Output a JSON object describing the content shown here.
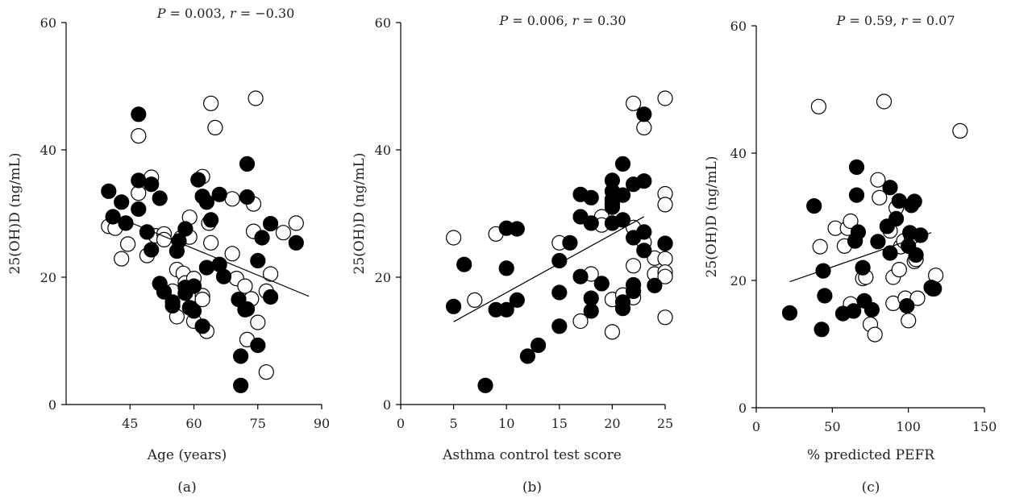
{
  "chart_data": [
    {
      "type": "scatter",
      "panel_label": "(a)",
      "stat": {
        "p_label": "P",
        "p_value": "= 0.003,",
        "r_label": "r",
        "r_value": "= −0.30"
      },
      "xlabel": "Age (years)",
      "ylabel": "25(OH)D (ng/mL)",
      "xlim": [
        30,
        90
      ],
      "ylim": [
        0,
        60
      ],
      "xticks": [
        45,
        60,
        75,
        90
      ],
      "yticks": [
        0,
        20,
        40,
        60
      ],
      "trend": [
        [
          40,
          30
        ],
        [
          87,
          17
        ]
      ],
      "series": [
        {
          "marker": "open",
          "points": [
            [
              40,
              28
            ],
            [
              41.5,
              27.7
            ],
            [
              43,
              22.9
            ],
            [
              44.5,
              25.2
            ],
            [
              47,
              42.2
            ],
            [
              47,
              33.2
            ],
            [
              49,
              23.4
            ],
            [
              50,
              35.7
            ],
            [
              51,
              26.5
            ],
            [
              53,
              26.8
            ],
            [
              53,
              25.9
            ],
            [
              55,
              17.8
            ],
            [
              56,
              21.2
            ],
            [
              56,
              13.8
            ],
            [
              57,
              26.2
            ],
            [
              57.5,
              20.6
            ],
            [
              58,
              19.1
            ],
            [
              59,
              29.4
            ],
            [
              59,
              26.3
            ],
            [
              60,
              19.8
            ],
            [
              60,
              13.1
            ],
            [
              60,
              17.3
            ],
            [
              62,
              35.8
            ],
            [
              62,
              17.1
            ],
            [
              62,
              16.5
            ],
            [
              63,
              11.5
            ],
            [
              63.5,
              28.5
            ],
            [
              64,
              25.4
            ],
            [
              64,
              47.3
            ],
            [
              65,
              43.5
            ],
            [
              69,
              32.3
            ],
            [
              69,
              23.7
            ],
            [
              70,
              19.8
            ],
            [
              72,
              18.6
            ],
            [
              72.5,
              10.2
            ],
            [
              73.5,
              16.6
            ],
            [
              74,
              31.5
            ],
            [
              74,
              27.2
            ],
            [
              74.5,
              48.1
            ],
            [
              75,
              12.9
            ],
            [
              77,
              17.8
            ],
            [
              77,
              5.1
            ],
            [
              78,
              20.5
            ],
            [
              81,
              27
            ],
            [
              84,
              28.5
            ]
          ]
        },
        {
          "marker": "filled",
          "points": [
            [
              40,
              33.5
            ],
            [
              41,
              29.5
            ],
            [
              43,
              31.8
            ],
            [
              44,
              28.5
            ],
            [
              47,
              45.6
            ],
            [
              47,
              35.2
            ],
            [
              47,
              30.7
            ],
            [
              49,
              27.1
            ],
            [
              50,
              24.3
            ],
            [
              50,
              34.6
            ],
            [
              52,
              32.4
            ],
            [
              52,
              19
            ],
            [
              53,
              17.7
            ],
            [
              55,
              16.1
            ],
            [
              55,
              15.5
            ],
            [
              56,
              24.1
            ],
            [
              56.5,
              25.7
            ],
            [
              58,
              27.6
            ],
            [
              58,
              18.4
            ],
            [
              58,
              17.5
            ],
            [
              59,
              15.2
            ],
            [
              60,
              14.7
            ],
            [
              60,
              18.6
            ],
            [
              61,
              35.3
            ],
            [
              62,
              32.7
            ],
            [
              62,
              12.3
            ],
            [
              63,
              21.5
            ],
            [
              63,
              31.8
            ],
            [
              64,
              29
            ],
            [
              66,
              22
            ],
            [
              66,
              33
            ],
            [
              67,
              20.1
            ],
            [
              70.5,
              16.5
            ],
            [
              71,
              7.6
            ],
            [
              71,
              3
            ],
            [
              72,
              14.9
            ],
            [
              72.5,
              15
            ],
            [
              72.5,
              37.8
            ],
            [
              72.5,
              32.6
            ],
            [
              75,
              22.6
            ],
            [
              75,
              9.3
            ],
            [
              76,
              26.2
            ],
            [
              78,
              28.4
            ],
            [
              78,
              16.9
            ],
            [
              84,
              25.4
            ]
          ]
        }
      ]
    },
    {
      "type": "scatter",
      "panel_label": "(b)",
      "stat": {
        "p_label": "P",
        "p_value": "= 0.006,",
        "r_label": "r",
        "r_value": "= 0.30"
      },
      "xlabel": "Asthma control test score",
      "ylabel": "25(OH)D (ng/mL)",
      "xlim": [
        0,
        25
      ],
      "ylim": [
        0,
        60
      ],
      "xticks": [
        0,
        5,
        10,
        15,
        20,
        25
      ],
      "yticks": [
        0,
        20,
        40,
        60
      ],
      "trend": [
        [
          5,
          13
        ],
        [
          23,
          29.5
        ]
      ],
      "series": [
        {
          "marker": "open",
          "points": [
            [
              5,
              26.2
            ],
            [
              7,
              16.4
            ],
            [
              9,
              26.8
            ],
            [
              15,
              25.4
            ],
            [
              17,
              13.1
            ],
            [
              18,
              20.5
            ],
            [
              19,
              29.5
            ],
            [
              19,
              28.2
            ],
            [
              20,
              16.5
            ],
            [
              20,
              11.4
            ],
            [
              20,
              31.5
            ],
            [
              21,
              17.2
            ],
            [
              22,
              47.3
            ],
            [
              22,
              27.8
            ],
            [
              22,
              21.8
            ],
            [
              22,
              16.8
            ],
            [
              23,
              43.5
            ],
            [
              23,
              25.5
            ],
            [
              24,
              20.5
            ],
            [
              24,
              23
            ],
            [
              25,
              48.1
            ],
            [
              25,
              33.1
            ],
            [
              25,
              31.4
            ],
            [
              25,
              25.3
            ],
            [
              25,
              22.9
            ],
            [
              25,
              20.8
            ],
            [
              25,
              20.1
            ],
            [
              25,
              13.7
            ]
          ]
        },
        {
          "marker": "filled",
          "points": [
            [
              5,
              15.4
            ],
            [
              6,
              22
            ],
            [
              8,
              3
            ],
            [
              9,
              14.9
            ],
            [
              10,
              27.7
            ],
            [
              10,
              21.4
            ],
            [
              10,
              14.9
            ],
            [
              11,
              27.6
            ],
            [
              11,
              16.4
            ],
            [
              12,
              7.6
            ],
            [
              13,
              9.3
            ],
            [
              15,
              22.6
            ],
            [
              15,
              17.6
            ],
            [
              15,
              12.3
            ],
            [
              16,
              25.4
            ],
            [
              17,
              33
            ],
            [
              17,
              29.5
            ],
            [
              17,
              20.1
            ],
            [
              18,
              32.5
            ],
            [
              18,
              28.5
            ],
            [
              18,
              16.7
            ],
            [
              18,
              14.7
            ],
            [
              19,
              19
            ],
            [
              20,
              35.2
            ],
            [
              20,
              33.5
            ],
            [
              20,
              32.2
            ],
            [
              20,
              31
            ],
            [
              20,
              28.5
            ],
            [
              21,
              37.8
            ],
            [
              21,
              32.9
            ],
            [
              21,
              29
            ],
            [
              21,
              16.1
            ],
            [
              21,
              15.1
            ],
            [
              22,
              34.6
            ],
            [
              22,
              26.2
            ],
            [
              22,
              18.8
            ],
            [
              22,
              17.8
            ],
            [
              23,
              45.6
            ],
            [
              23,
              35.1
            ],
            [
              23,
              27.1
            ],
            [
              23,
              24.2
            ],
            [
              24,
              18.7
            ],
            [
              25,
              25.3
            ]
          ]
        }
      ]
    },
    {
      "type": "scatter",
      "panel_label": "(c)",
      "stat": {
        "p_label": "P",
        "p_value": "= 0.59,",
        "r_label": "r",
        "r_value": "= 0.07"
      },
      "xlabel": "% predicted PEFR",
      "ylabel": "25(OH)D (ng/mL)",
      "xlim": [
        0,
        150
      ],
      "ylim": [
        0,
        60
      ],
      "xticks": [
        0,
        50,
        100,
        150
      ],
      "yticks": [
        0,
        20,
        40,
        60
      ],
      "trend": [
        [
          22,
          19.8
        ],
        [
          115,
          27.5
        ]
      ],
      "series": [
        {
          "marker": "open",
          "points": [
            [
              41,
              47.3
            ],
            [
              42,
              25.3
            ],
            [
              52,
              28.2
            ],
            [
              58,
              25.4
            ],
            [
              60,
              28.2
            ],
            [
              62,
              29.3
            ],
            [
              62,
              16.3
            ],
            [
              65,
              26.2
            ],
            [
              70,
              20.3
            ],
            [
              72,
              20.5
            ],
            [
              75,
              13.1
            ],
            [
              78,
              11.5
            ],
            [
              80,
              35.8
            ],
            [
              81,
              33
            ],
            [
              84,
              48.1
            ],
            [
              88,
              27.8
            ],
            [
              90,
              20.5
            ],
            [
              90,
              16.4
            ],
            [
              92,
              31.4
            ],
            [
              94,
              21.7
            ],
            [
              95,
              25.3
            ],
            [
              97,
              26.2
            ],
            [
              98,
              17.2
            ],
            [
              100,
              13.7
            ],
            [
              102,
              26.8
            ],
            [
              104,
              23
            ],
            [
              105,
              23.3
            ],
            [
              106,
              17.2
            ],
            [
              116,
              18.7
            ],
            [
              118,
              20.8
            ],
            [
              134,
              43.5
            ]
          ]
        },
        {
          "marker": "filled",
          "points": [
            [
              22,
              14.9
            ],
            [
              38,
              31.7
            ],
            [
              43,
              12.3
            ],
            [
              44,
              21.5
            ],
            [
              45,
              17.6
            ],
            [
              57,
              14.8
            ],
            [
              64,
              15.2
            ],
            [
              65,
              26.2
            ],
            [
              66,
              33.4
            ],
            [
              66,
              37.8
            ],
            [
              67,
              27.6
            ],
            [
              70,
              22
            ],
            [
              71,
              16.8
            ],
            [
              76,
              15.4
            ],
            [
              80,
              26.1
            ],
            [
              86,
              28.5
            ],
            [
              88,
              34.6
            ],
            [
              88,
              24.3
            ],
            [
              92,
              29.7
            ],
            [
              94,
              32.5
            ],
            [
              99,
              16
            ],
            [
              100,
              25.4
            ],
            [
              101,
              27.5
            ],
            [
              102,
              31.8
            ],
            [
              104,
              32.4
            ],
            [
              105,
              24
            ],
            [
              108,
              27.1
            ],
            [
              115,
              18.9
            ],
            [
              117,
              18.7
            ]
          ]
        }
      ]
    }
  ]
}
